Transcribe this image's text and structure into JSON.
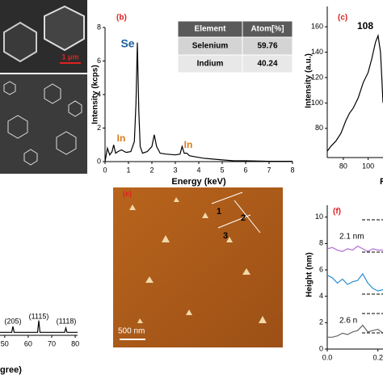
{
  "panel_a": {
    "scale_bar": "1 μm"
  },
  "panel_b": {
    "type": "line",
    "label": "(b)",
    "xlabel": "Energy (keV)",
    "ylabel": "Intensity (kcps)",
    "xlim": [
      0,
      8
    ],
    "ylim": [
      0,
      8
    ],
    "xticks": [
      0,
      1,
      2,
      3,
      4,
      5,
      6,
      7,
      8
    ],
    "yticks": [
      0,
      2,
      4,
      6,
      8
    ],
    "color": "#000000",
    "x": [
      0,
      0.1,
      0.2,
      0.3,
      0.37,
      0.45,
      0.55,
      0.7,
      0.9,
      1.1,
      1.25,
      1.32,
      1.38,
      1.44,
      1.5,
      1.6,
      1.8,
      2.0,
      2.1,
      2.2,
      2.35,
      2.6,
      3.0,
      3.2,
      3.29,
      3.38,
      3.49,
      3.6,
      3.8,
      4.2,
      4.6,
      5.0,
      5.5,
      6,
      7,
      8
    ],
    "values": [
      0,
      0.8,
      0.4,
      0.6,
      1.0,
      0.5,
      0.6,
      0.7,
      0.55,
      0.6,
      1.2,
      3.5,
      7.1,
      3.0,
      0.9,
      0.5,
      0.6,
      0.9,
      1.6,
      0.9,
      0.5,
      0.45,
      0.4,
      0.45,
      0.9,
      0.5,
      0.5,
      0.35,
      0.3,
      0.2,
      0.15,
      0.1,
      0.05,
      0.05,
      0.02,
      0.02
    ],
    "annotations": [
      "Se",
      "In",
      "In"
    ],
    "table": {
      "header": [
        "Element",
        "Atom[%]"
      ],
      "rows": [
        [
          "Selenium",
          "59.76"
        ],
        [
          "Indium",
          "40.24"
        ]
      ]
    }
  },
  "panel_c": {
    "type": "line",
    "label": "(c)",
    "ylabel": "Intensity (a.u.)",
    "xlabel": "R",
    "xlim": [
      67,
      112
    ],
    "ylim": [
      57,
      176
    ],
    "xticks": [
      80,
      100
    ],
    "yticks": [
      80,
      100,
      120,
      140,
      160
    ],
    "color": "#000000",
    "x": [
      67,
      70,
      74,
      78,
      82,
      85,
      88,
      92,
      96,
      100,
      103,
      106,
      108,
      110,
      111,
      112
    ],
    "values": [
      62,
      66,
      70,
      76,
      86,
      92,
      96,
      104,
      116,
      124,
      135,
      148,
      153,
      140,
      120,
      100
    ],
    "annotation": "108"
  },
  "panel_d": {
    "type": "line",
    "xlabel": "gree)",
    "xlim": [
      48,
      81
    ],
    "ylim": [
      0,
      100
    ],
    "xticks": [
      50,
      60,
      70,
      80
    ],
    "color": "#000000",
    "x": [
      48,
      50,
      52,
      53,
      53.5,
      54,
      56,
      60,
      62,
      64,
      64.5,
      65,
      66,
      70,
      74,
      75.5,
      76,
      76.5,
      78,
      81
    ],
    "values": [
      2,
      2,
      2,
      2,
      6,
      2,
      2,
      2,
      2,
      2,
      10,
      2,
      2,
      2,
      2,
      2,
      5,
      2,
      2,
      2
    ],
    "annotations": [
      "(205)",
      "(1115)",
      "(1118)"
    ]
  },
  "panel_e": {
    "label": "(e)",
    "scale_bar": "500 nm",
    "markers": [
      "1",
      "2",
      "3"
    ]
  },
  "panel_f": {
    "type": "line",
    "label": "(f)",
    "ylabel": "Height (nm)",
    "xlim": [
      0,
      0.22
    ],
    "ylim": [
      0,
      10.9
    ],
    "xticks": [
      {
        "value": 0,
        "label": "0.0"
      },
      0.2
    ],
    "yticks": [
      0,
      2,
      4,
      6,
      8,
      10
    ],
    "x": [
      0,
      0.02,
      0.04,
      0.06,
      0.08,
      0.1,
      0.12,
      0.14,
      0.16,
      0.18,
      0.2,
      0.22
    ],
    "series": [
      {
        "color": "#b26fd6",
        "values": [
          7.6,
          7.7,
          7.5,
          7.4,
          7.6,
          7.5,
          7.8,
          7.6,
          7.4,
          7.6,
          7.5,
          7.5
        ]
      },
      {
        "color": "#2a8fd0",
        "values": [
          5.6,
          5.4,
          5.0,
          5.3,
          4.9,
          5.1,
          5.2,
          5.7,
          5.0,
          4.6,
          4.4,
          4.5
        ]
      },
      {
        "color": "#666666",
        "values": [
          0.9,
          0.9,
          1.0,
          1.2,
          1.1,
          1.3,
          1.4,
          1.8,
          1.3,
          1.4,
          1.5,
          1.2
        ]
      }
    ],
    "annotations": [
      "2.1 nm",
      "2.6 n"
    ]
  }
}
